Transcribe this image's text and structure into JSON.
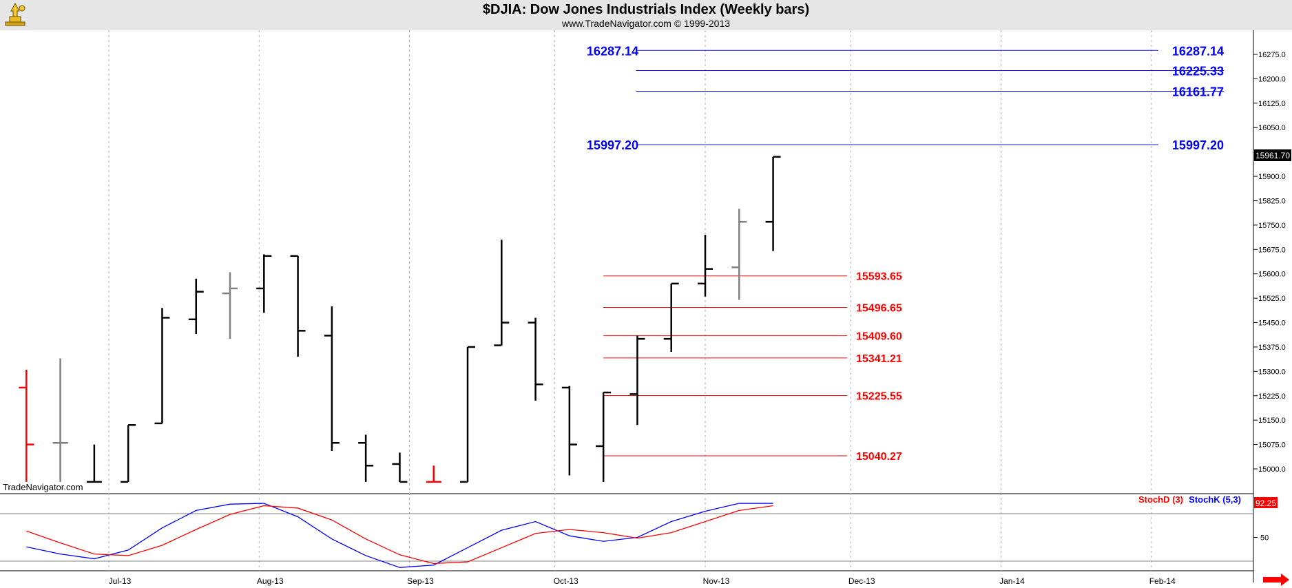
{
  "header": {
    "title": "$DJIA:  Dow Jones Industrials Index  (Weekly bars)",
    "subtitle": "www.TradeNavigator.com © 1999-2013"
  },
  "watermark": "TradeNavigator.com",
  "last_price_label": "15961.70",
  "stoch_last_label": "92.25",
  "colors": {
    "up_bar": "#000000",
    "neutral_bar": "#808080",
    "down_bar": "#ff0000",
    "resistance": "#0000ff",
    "support": "#ff0000",
    "stoch_k": "#0000ff",
    "stoch_d": "#ff0000",
    "header_bg": "#e6e6e6"
  },
  "chart_data": [
    {
      "type": "bar",
      "subtype": "ohlc",
      "title": "$DJIA:  Dow Jones Industrials Index  (Weekly bars)",
      "x_ticks": [
        "Jul-13",
        "Aug-13",
        "Sep-13",
        "Oct-13",
        "Nov-13",
        "Dec-13",
        "Jan-14",
        "Feb-14"
      ],
      "y_ticks": [
        "15000.0",
        "15075.0",
        "15150.0",
        "15225.0",
        "15300.0",
        "15375.0",
        "15450.0",
        "15525.0",
        "15600.0",
        "15675.0",
        "15750.0",
        "15825.0",
        "15900.0",
        "16050.0",
        "16125.0",
        "16200.0",
        "16275.0"
      ],
      "ylim": [
        14960,
        16330
      ],
      "bars": [
        {
          "date": "2013-06-14",
          "open": 15250,
          "high": 15305,
          "low": 14960,
          "close": 15075,
          "color": "down"
        },
        {
          "date": "2013-06-21",
          "open": 15080,
          "high": 15340,
          "low": 14960,
          "close": 15080,
          "color": "neutral"
        },
        {
          "date": "2013-06-28",
          "open": 14960,
          "high": 15075,
          "low": 14960,
          "close": 14960,
          "color": "up"
        },
        {
          "date": "2013-07-05",
          "open": 14960,
          "high": 15135,
          "low": 14960,
          "close": 15135,
          "color": "up"
        },
        {
          "date": "2013-07-12",
          "open": 15140,
          "high": 15495,
          "low": 15140,
          "close": 15465,
          "color": "up"
        },
        {
          "date": "2013-07-19",
          "open": 15460,
          "high": 15585,
          "low": 15415,
          "close": 15545,
          "color": "up"
        },
        {
          "date": "2013-07-26",
          "open": 15540,
          "high": 15605,
          "low": 15400,
          "close": 15555,
          "color": "neutral"
        },
        {
          "date": "2013-08-02",
          "open": 15555,
          "high": 15660,
          "low": 15480,
          "close": 15655,
          "color": "up"
        },
        {
          "date": "2013-08-09",
          "open": 15655,
          "high": 15655,
          "low": 15345,
          "close": 15425,
          "color": "up"
        },
        {
          "date": "2013-08-16",
          "open": 15410,
          "high": 15500,
          "low": 15055,
          "close": 15080,
          "color": "up"
        },
        {
          "date": "2013-08-23",
          "open": 15080,
          "high": 15105,
          "low": 14960,
          "close": 15010,
          "color": "up"
        },
        {
          "date": "2013-08-30",
          "open": 15015,
          "high": 15050,
          "low": 14960,
          "close": 14960,
          "color": "up"
        },
        {
          "date": "2013-09-06",
          "open": 14960,
          "high": 15010,
          "low": 14960,
          "close": 14960,
          "color": "down"
        },
        {
          "date": "2013-09-13",
          "open": 14960,
          "high": 15375,
          "low": 14960,
          "close": 15375,
          "color": "up"
        },
        {
          "date": "2013-09-20",
          "open": 15380,
          "high": 15705,
          "low": 15380,
          "close": 15450,
          "color": "up"
        },
        {
          "date": "2013-09-27",
          "open": 15450,
          "high": 15465,
          "low": 15210,
          "close": 15260,
          "color": "up"
        },
        {
          "date": "2013-10-04",
          "open": 15250,
          "high": 15255,
          "low": 14980,
          "close": 15075,
          "color": "up"
        },
        {
          "date": "2013-10-11",
          "open": 15070,
          "high": 15235,
          "low": 14960,
          "close": 15235,
          "color": "up"
        },
        {
          "date": "2013-10-18",
          "open": 15230,
          "high": 15410,
          "low": 15135,
          "close": 15400,
          "color": "up"
        },
        {
          "date": "2013-10-25",
          "open": 15400,
          "high": 15570,
          "low": 15360,
          "close": 15570,
          "color": "up"
        },
        {
          "date": "2013-11-01",
          "open": 15570,
          "high": 15720,
          "low": 15530,
          "close": 15615,
          "color": "up"
        },
        {
          "date": "2013-11-08",
          "open": 15620,
          "high": 15800,
          "low": 15520,
          "close": 15760,
          "color": "neutral"
        },
        {
          "date": "2013-11-15",
          "open": 15760,
          "high": 15960,
          "low": 15670,
          "close": 15960,
          "color": "up"
        }
      ],
      "resistance_levels": [
        16287.14,
        16225.33,
        16161.77,
        15997.2
      ],
      "support_levels": [
        15593.65,
        15496.65,
        15409.6,
        15341.21,
        15225.55,
        15040.27
      ],
      "last_price": 15961.7
    },
    {
      "type": "line",
      "title": "",
      "ylim": [
        10,
        108
      ],
      "y_ticks": [
        "50"
      ],
      "reference_lines": [
        80,
        20
      ],
      "series": [
        {
          "name": "StochK (5,3)",
          "dates": [
            "2013-06-14",
            "2013-06-21",
            "2013-06-28",
            "2013-07-05",
            "2013-07-12",
            "2013-07-19",
            "2013-07-26",
            "2013-08-02",
            "2013-08-09",
            "2013-08-16",
            "2013-08-23",
            "2013-08-30",
            "2013-09-06",
            "2013-09-13",
            "2013-09-20",
            "2013-09-27",
            "2013-10-04",
            "2013-10-11",
            "2013-10-18",
            "2013-10-25",
            "2013-11-01",
            "2013-11-08",
            "2013-11-15"
          ],
          "values": [
            38,
            29,
            23,
            34,
            62,
            84,
            92,
            93,
            76,
            48,
            27,
            12,
            15,
            37,
            59,
            70,
            52,
            45,
            50,
            70,
            83,
            93,
            93
          ]
        },
        {
          "name": "StochD (3)",
          "dates": [
            "2013-06-14",
            "2013-06-21",
            "2013-06-28",
            "2013-07-05",
            "2013-07-12",
            "2013-07-19",
            "2013-07-26",
            "2013-08-02",
            "2013-08-09",
            "2013-08-16",
            "2013-08-23",
            "2013-08-30",
            "2013-09-06",
            "2013-09-13",
            "2013-09-20",
            "2013-09-27",
            "2013-10-04",
            "2013-10-11",
            "2013-10-18",
            "2013-10-25",
            "2013-11-01",
            "2013-11-08",
            "2013-11-15"
          ],
          "values": [
            58,
            43,
            29,
            27,
            40,
            60,
            79,
            90,
            87,
            72,
            48,
            28,
            17,
            19,
            37,
            55,
            60,
            56,
            49,
            56,
            70,
            84,
            90
          ]
        }
      ]
    }
  ]
}
